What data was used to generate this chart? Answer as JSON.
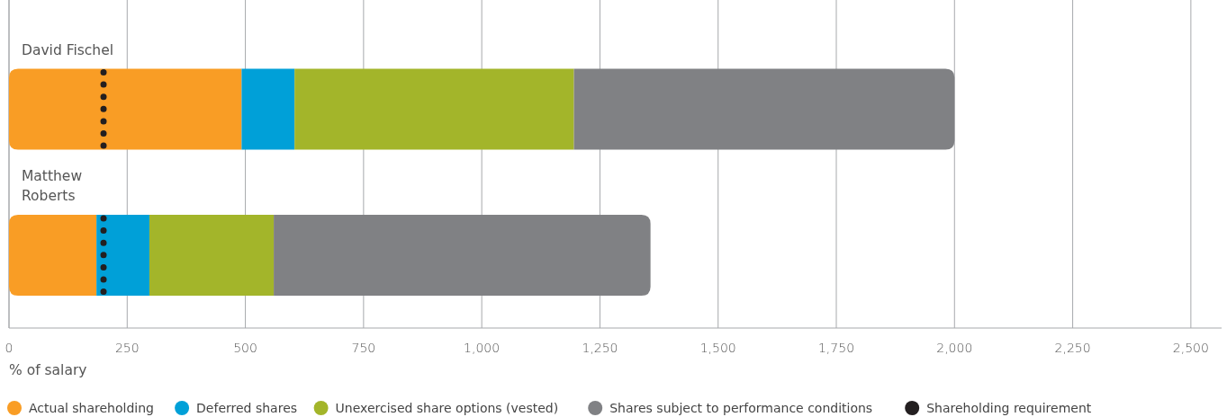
{
  "chart_data": {
    "type": "bar",
    "orientation": "horizontal",
    "stacked": true,
    "categories": [
      "David Fischel",
      "Matthew\nRoberts"
    ],
    "series": [
      {
        "name": "Actual shareholding",
        "color": "#f99d25",
        "values": [
          492,
          185
        ]
      },
      {
        "name": "Deferred shares",
        "color": "#00a0d8",
        "values": [
          112,
          112
        ]
      },
      {
        "name": "Unexercised share options (vested)",
        "color": "#a3b52a",
        "values": [
          591,
          263
        ]
      },
      {
        "name": "Shares subject to performance conditions",
        "color": "#808184",
        "values": [
          805,
          797
        ]
      }
    ],
    "ref_lines": [
      {
        "axis": "x",
        "value": 200,
        "label": "Shareholding requirement",
        "color": "#231f20",
        "line_style": "dotted"
      }
    ],
    "xlim": [
      0,
      2565
    ],
    "xticks": [
      0,
      250,
      500,
      750,
      {
        "value": 1000,
        "label": "1,000"
      },
      {
        "value": 1250,
        "label": "1,250"
      },
      {
        "value": 1500,
        "label": "1,500"
      },
      {
        "value": 1750,
        "label": "1,750"
      },
      {
        "value": 2000,
        "label": "2,000"
      },
      {
        "value": 2250,
        "label": "2,250"
      },
      {
        "value": 2500,
        "label": "2,500"
      }
    ],
    "xlabel": "% of salary",
    "grid": "x",
    "legend": "bottom"
  }
}
